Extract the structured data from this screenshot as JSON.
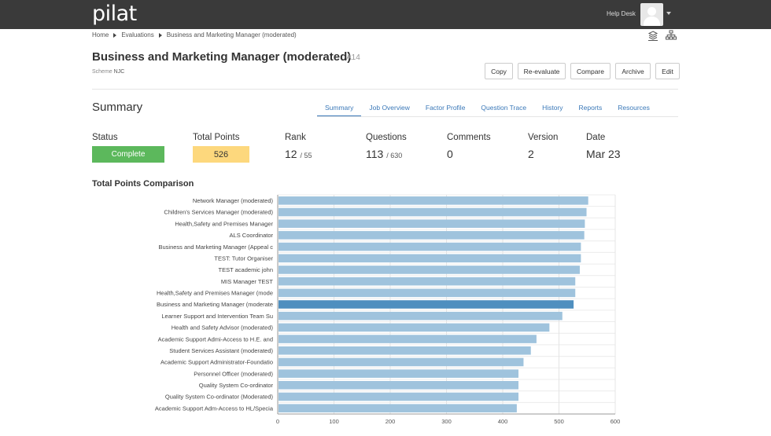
{
  "app": {
    "logo": "pilat",
    "help_label": "Help Desk"
  },
  "breadcrumb": [
    "Home",
    "Evaluations",
    "Business and Marketing Manager (moderated)"
  ],
  "page": {
    "title": "Business and Marketing Manager (moderated)",
    "code": "A14",
    "scheme_label": "Scheme",
    "scheme_value": "NJC"
  },
  "buttons": {
    "copy": "Copy",
    "reevaluate": "Re-evaluate",
    "compare": "Compare",
    "archive": "Archive",
    "edit": "Edit"
  },
  "summary_heading": "Summary",
  "tabs": [
    "Summary",
    "Job Overview",
    "Factor Profile",
    "Question Trace",
    "History",
    "Reports",
    "Resources"
  ],
  "stats": {
    "status_label": "Status",
    "status_value": "Complete",
    "points_label": "Total Points",
    "points_value": "526",
    "rank_label": "Rank",
    "rank_value": "12",
    "rank_total": "55",
    "questions_label": "Questions",
    "questions_value": "113",
    "questions_total": "630",
    "comments_label": "Comments",
    "comments_value": "0",
    "version_label": "Version",
    "version_value": "2",
    "date_label": "Date",
    "date_value": "Mar 23"
  },
  "colors": {
    "bar": "#9fc3dd",
    "bar_highlight": "#4f8fbf",
    "status": "#5cb85c",
    "points": "#fdd87d",
    "accent": "#3a78b8"
  },
  "chart_data": {
    "type": "bar",
    "orientation": "horizontal",
    "title": "Total Points Comparison",
    "categories": [
      "Network Manager (moderated)",
      "Children's Services Manager (moderated)",
      "Health,Safety and Premises Manager",
      "ALS Coordinator",
      "Business and Marketing Manager (Appeal c",
      "TEST: Tutor Organiser",
      "TEST academic john",
      "MIS Manager  TEST",
      "Health,Safety and Premises Manager (mode",
      "Business and Marketing Manager (moderate",
      "Learner Support and Intervention Team Su",
      "Health and Safety Advisor (moderated)",
      "Academic Support Admi-Access to H.E. and",
      "Student Services Assistant (moderated)",
      "Academic Support Administrator-Foundatio",
      "Personnel Officer (moderated)",
      "Quality System Co-ordinator",
      "Quality System Co-ordinator (Moderated)",
      "Academic Support Adm-Access to HL/Specia"
    ],
    "values": [
      552,
      549,
      546,
      545,
      539,
      539,
      537,
      529,
      529,
      526,
      506,
      483,
      460,
      450,
      437,
      428,
      428,
      428,
      425
    ],
    "highlight_index": 9,
    "xlim": [
      0,
      600
    ],
    "xticks": [
      0,
      100,
      200,
      300,
      400,
      500,
      600
    ],
    "grid": true
  }
}
